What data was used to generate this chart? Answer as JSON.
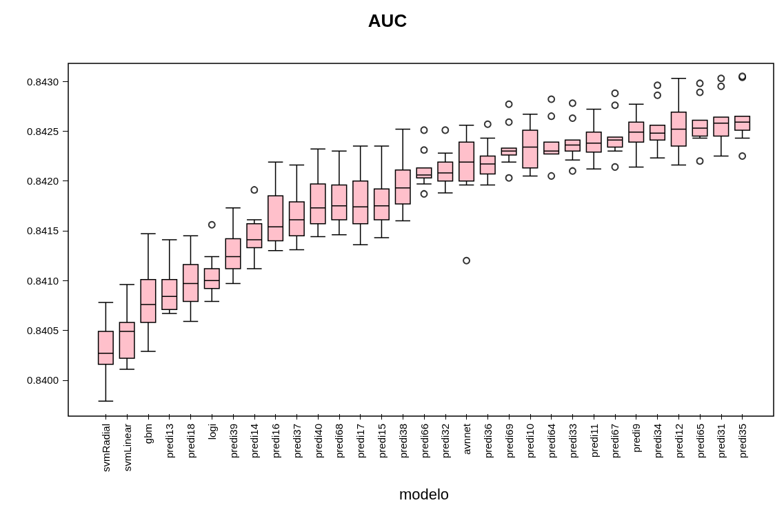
{
  "chart_data": {
    "type": "box",
    "title": "AUC",
    "xlabel": "modelo",
    "color": "#ffc0cb",
    "grid": false,
    "marker": "circle",
    "categories": [
      "svmRadial",
      "svmLinear",
      "gbm",
      "predi13",
      "predi18",
      "logi",
      "predi39",
      "predi14",
      "predi16",
      "predi37",
      "predi40",
      "predi68",
      "predi17",
      "predi15",
      "predi38",
      "predi66",
      "predi32",
      "avnnet",
      "predi36",
      "predi69",
      "predi10",
      "predi64",
      "predi33",
      "predi11",
      "predi67",
      "predi9",
      "predi34",
      "predi12",
      "predi65",
      "predi31",
      "predi35"
    ],
    "boxes": [
      {
        "low": 0.83979,
        "q1": 0.84016,
        "median": 0.84027,
        "q3": 0.84049,
        "high": 0.84078
      },
      {
        "low": 0.84011,
        "q1": 0.84022,
        "median": 0.84049,
        "q3": 0.84058,
        "high": 0.84096
      },
      {
        "low": 0.84029,
        "q1": 0.84058,
        "median": 0.84076,
        "q3": 0.84101,
        "high": 0.84147
      },
      {
        "low": 0.84067,
        "q1": 0.84071,
        "median": 0.84084,
        "q3": 0.84101,
        "high": 0.84141
      },
      {
        "low": 0.84059,
        "q1": 0.84079,
        "median": 0.84097,
        "q3": 0.84116,
        "high": 0.84145
      },
      {
        "low": 0.84079,
        "q1": 0.84092,
        "median": 0.841,
        "q3": 0.84112,
        "high": 0.84124,
        "outliers": [
          0.84156
        ]
      },
      {
        "low": 0.84097,
        "q1": 0.84112,
        "median": 0.84124,
        "q3": 0.84142,
        "high": 0.84173
      },
      {
        "low": 0.84112,
        "q1": 0.84133,
        "median": 0.84141,
        "q3": 0.84157,
        "high": 0.84161,
        "outliers": [
          0.84191
        ]
      },
      {
        "low": 0.8413,
        "q1": 0.8414,
        "median": 0.84154,
        "q3": 0.84185,
        "high": 0.84219
      },
      {
        "low": 0.84131,
        "q1": 0.84145,
        "median": 0.84161,
        "q3": 0.84179,
        "high": 0.84216
      },
      {
        "low": 0.84144,
        "q1": 0.84157,
        "median": 0.84173,
        "q3": 0.84197,
        "high": 0.84232
      },
      {
        "low": 0.84146,
        "q1": 0.84161,
        "median": 0.84175,
        "q3": 0.84196,
        "high": 0.8423
      },
      {
        "low": 0.84136,
        "q1": 0.84157,
        "median": 0.84174,
        "q3": 0.842,
        "high": 0.84235
      },
      {
        "low": 0.84143,
        "q1": 0.84161,
        "median": 0.84175,
        "q3": 0.84192,
        "high": 0.84235
      },
      {
        "low": 0.8416,
        "q1": 0.84177,
        "median": 0.84193,
        "q3": 0.84211,
        "high": 0.84252
      },
      {
        "low": 0.84197,
        "q1": 0.84203,
        "median": 0.84206,
        "q3": 0.84213,
        "high": 0.84213,
        "outliers": [
          0.84251,
          0.84231,
          0.84187
        ]
      },
      {
        "low": 0.84188,
        "q1": 0.842,
        "median": 0.84208,
        "q3": 0.84219,
        "high": 0.84228,
        "outliers": [
          0.84251
        ]
      },
      {
        "low": 0.84196,
        "q1": 0.842,
        "median": 0.84219,
        "q3": 0.84239,
        "high": 0.84256,
        "outliers": [
          0.8412
        ]
      },
      {
        "low": 0.84196,
        "q1": 0.84207,
        "median": 0.84217,
        "q3": 0.84225,
        "high": 0.84243,
        "outliers": [
          0.84257
        ]
      },
      {
        "low": 0.84219,
        "q1": 0.84226,
        "median": 0.8423,
        "q3": 0.84233,
        "high": 0.84233,
        "outliers": [
          0.84277,
          0.84259,
          0.84203
        ]
      },
      {
        "low": 0.84205,
        "q1": 0.84213,
        "median": 0.84234,
        "q3": 0.84251,
        "high": 0.84267
      },
      {
        "low": 0.84227,
        "q1": 0.84227,
        "median": 0.8423,
        "q3": 0.84239,
        "high": 0.84239,
        "outliers": [
          0.84282,
          0.84265,
          0.84205
        ]
      },
      {
        "low": 0.84221,
        "q1": 0.8423,
        "median": 0.84236,
        "q3": 0.84241,
        "high": 0.84241,
        "outliers": [
          0.84278,
          0.84263,
          0.8421
        ]
      },
      {
        "low": 0.84212,
        "q1": 0.84229,
        "median": 0.84238,
        "q3": 0.84249,
        "high": 0.84272
      },
      {
        "low": 0.8423,
        "q1": 0.84234,
        "median": 0.84241,
        "q3": 0.84244,
        "high": 0.84244,
        "outliers": [
          0.84288,
          0.84276,
          0.84214
        ]
      },
      {
        "low": 0.84214,
        "q1": 0.84239,
        "median": 0.84249,
        "q3": 0.84259,
        "high": 0.84277
      },
      {
        "low": 0.84223,
        "q1": 0.84241,
        "median": 0.84248,
        "q3": 0.84256,
        "high": 0.84256,
        "outliers": [
          0.84296,
          0.84286
        ]
      },
      {
        "low": 0.84216,
        "q1": 0.84235,
        "median": 0.84252,
        "q3": 0.84269,
        "high": 0.84303
      },
      {
        "low": 0.84243,
        "q1": 0.84245,
        "median": 0.84253,
        "q3": 0.84261,
        "high": 0.84261,
        "outliers": [
          0.84298,
          0.84289,
          0.8422
        ]
      },
      {
        "low": 0.84225,
        "q1": 0.84245,
        "median": 0.84258,
        "q3": 0.84264,
        "high": 0.84264,
        "outliers": [
          0.84303,
          0.84295
        ]
      },
      {
        "low": 0.84243,
        "q1": 0.84251,
        "median": 0.84259,
        "q3": 0.84265,
        "high": 0.84265,
        "outliers": [
          0.84304,
          0.84305,
          0.84225
        ]
      }
    ],
    "ylim": [
      0.83966,
      0.84318
    ],
    "yticks": [
      {
        "value": 0.84,
        "label": "0.8400"
      },
      {
        "value": 0.8405,
        "label": "0.8405"
      },
      {
        "value": 0.841,
        "label": "0.8410"
      },
      {
        "value": 0.8415,
        "label": "0.8415"
      },
      {
        "value": 0.842,
        "label": "0.8420"
      },
      {
        "value": 0.8425,
        "label": "0.8425"
      },
      {
        "value": 0.843,
        "label": "0.8430"
      }
    ]
  }
}
